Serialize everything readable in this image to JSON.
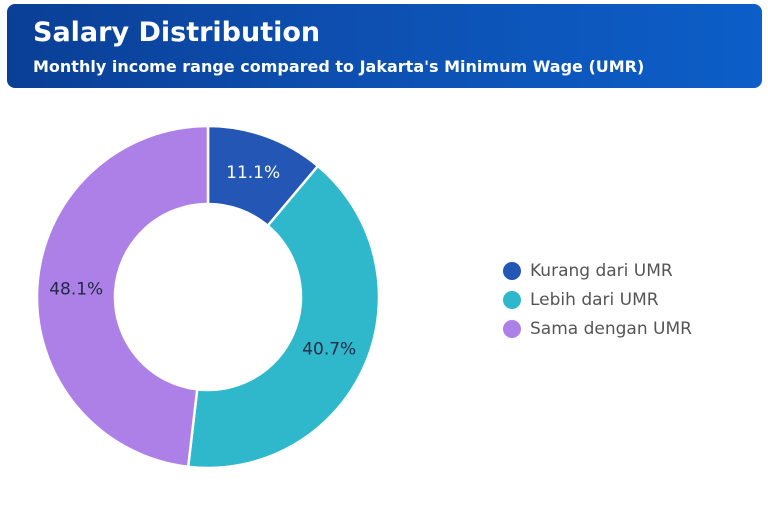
{
  "header": {
    "title": "Salary Distribution",
    "subtitle": "Monthly income range compared to Jakarta's Minimum Wage (UMR)"
  },
  "colors": {
    "header_bg": "#0d4fb0",
    "slice_stroke": "#ffffff"
  },
  "chart_data": {
    "type": "pie",
    "subtype": "donut",
    "title": "Salary Distribution",
    "subtitle": "Monthly income range compared to Jakarta's Minimum Wage (UMR)",
    "categories": [
      "Kurang dari UMR",
      "Lebih dari UMR",
      "Sama dengan UMR"
    ],
    "values": [
      11.1,
      40.7,
      48.1
    ],
    "labels": [
      "11.1%",
      "40.7%",
      "48.1%"
    ],
    "colors": [
      "#2356b5",
      "#2fb8cb",
      "#ad80e8"
    ],
    "label_colors": [
      "#ffffff",
      "#1f2a44",
      "#1f2a44"
    ],
    "legend_position": "right"
  }
}
